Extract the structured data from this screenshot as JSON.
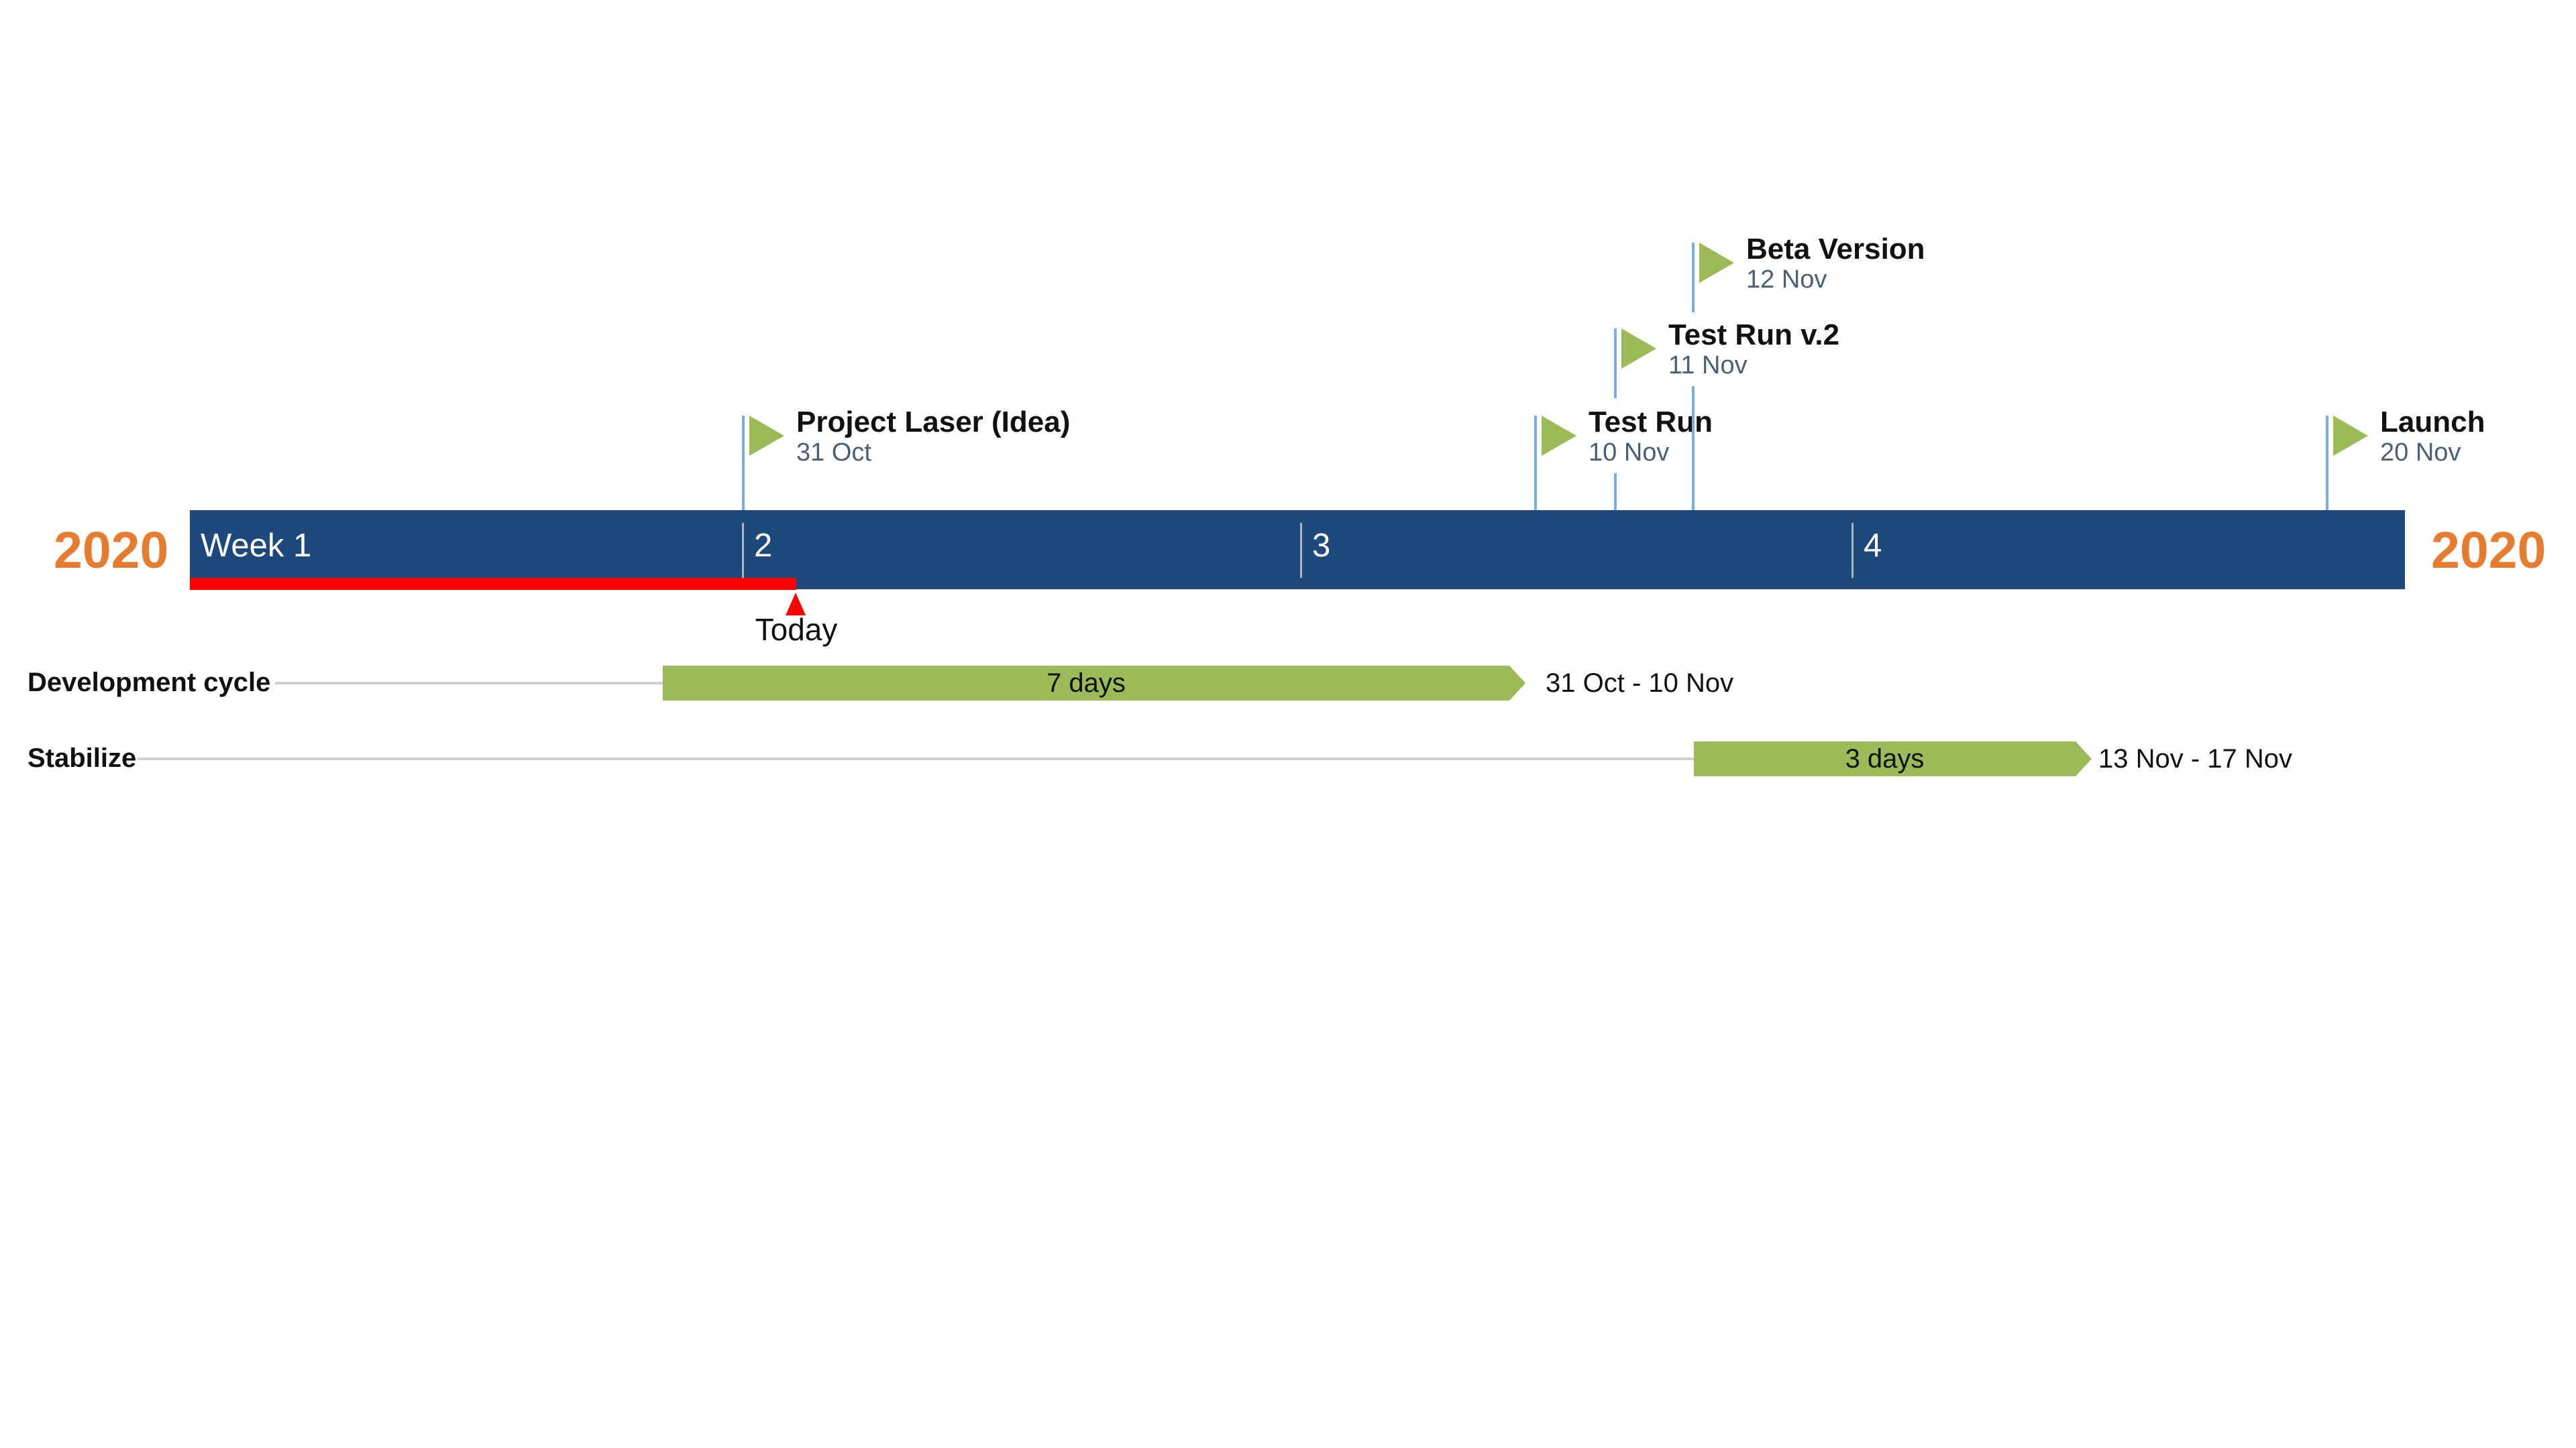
{
  "colors": {
    "timeline": "#1f497d",
    "year": "#e67c30",
    "today": "#ff0000",
    "milestone_flag": "#9bbb59",
    "milestone_line": "#7aaee0",
    "task_bar": "#9bbb59"
  },
  "year_left": "2020",
  "year_right": "2020",
  "weeks": [
    "Week 1",
    "2",
    "3",
    "4"
  ],
  "today": {
    "label": "Today"
  },
  "milestones": [
    {
      "title": "Project Laser (Idea)",
      "date": "31 Oct",
      "icon": "flag-icon"
    },
    {
      "title": "Test Run",
      "date": "10 Nov",
      "icon": "flag-icon"
    },
    {
      "title": "Test Run v.2",
      "date": "11 Nov",
      "icon": "flag-icon"
    },
    {
      "title": "Beta Version",
      "date": "12 Nov",
      "icon": "flag-icon"
    },
    {
      "title": "Launch",
      "date": "20 Nov",
      "icon": "flag-icon"
    }
  ],
  "tasks": [
    {
      "name": "Development cycle",
      "duration": "7 days",
      "range": "31 Oct - 10 Nov"
    },
    {
      "name": "Stabilize",
      "duration": "3 days",
      "range": "13 Nov - 17 Nov"
    }
  ]
}
